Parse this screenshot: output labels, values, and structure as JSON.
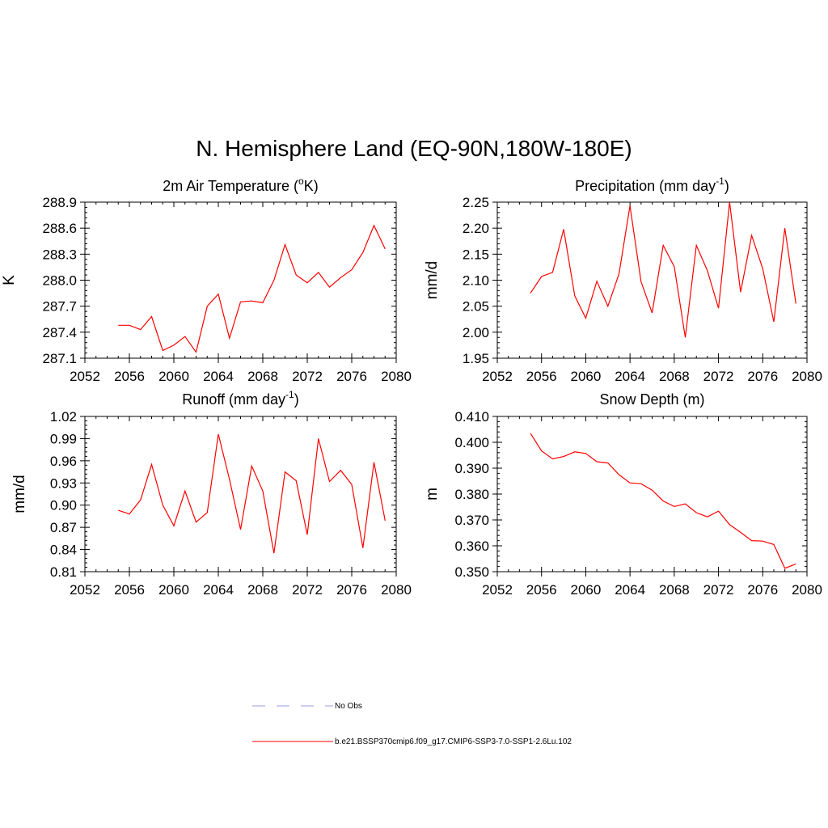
{
  "figure": {
    "title": "N. Hemisphere Land (EQ-90N,180W-180E)"
  },
  "legend": {
    "entries": [
      {
        "label": "No Obs",
        "style": "dashed",
        "color": "#9999dd"
      },
      {
        "label": "b.e21.BSSP370cmip6.f09_g17.CMIP6-SSP3-7.0-SSP1-2.6Lu.102",
        "style": "solid",
        "color": "#ff0000"
      }
    ]
  },
  "chart_data": [
    {
      "type": "line",
      "title": "2m Air Temperature (°K)",
      "title_parts": [
        "2m Air Temperature (",
        "o",
        "K)"
      ],
      "ylabel": "K",
      "xlim": [
        2052,
        2080
      ],
      "ylim": [
        287.1,
        288.9
      ],
      "xticks": [
        2052,
        2056,
        2060,
        2064,
        2068,
        2072,
        2076,
        2080
      ],
      "yticks": [
        287.1,
        287.4,
        287.7,
        288.0,
        288.3,
        288.6,
        288.9
      ],
      "ytick_labels": [
        "287.1",
        "287.4",
        "287.7",
        "288.0",
        "288.3",
        "288.6",
        "288.9"
      ],
      "color": "#ff0000",
      "x": [
        2055,
        2056,
        2057,
        2058,
        2059,
        2060,
        2061,
        2062,
        2063,
        2064,
        2065,
        2066,
        2067,
        2068,
        2069,
        2070,
        2071,
        2072,
        2073,
        2074,
        2075,
        2076,
        2077,
        2078,
        2079
      ],
      "y": [
        287.48,
        287.48,
        287.43,
        287.58,
        287.19,
        287.25,
        287.35,
        287.17,
        287.7,
        287.84,
        287.33,
        287.75,
        287.76,
        287.74,
        288.0,
        288.41,
        288.06,
        287.97,
        288.09,
        287.92,
        288.03,
        288.12,
        288.32,
        288.63,
        288.36
      ]
    },
    {
      "type": "line",
      "title": "Precipitation (mm day-1)",
      "title_parts": [
        "Precipitation (mm day",
        "-1",
        ")"
      ],
      "ylabel": "mm/d",
      "xlim": [
        2052,
        2080
      ],
      "ylim": [
        1.95,
        2.25
      ],
      "xticks": [
        2052,
        2056,
        2060,
        2064,
        2068,
        2072,
        2076,
        2080
      ],
      "yticks": [
        1.95,
        2.0,
        2.05,
        2.1,
        2.15,
        2.2,
        2.25
      ],
      "ytick_labels": [
        "1.95",
        "2.00",
        "2.05",
        "2.10",
        "2.15",
        "2.20",
        "2.25"
      ],
      "color": "#ff0000",
      "x": [
        2055,
        2056,
        2057,
        2058,
        2059,
        2060,
        2061,
        2062,
        2063,
        2064,
        2065,
        2066,
        2067,
        2068,
        2069,
        2070,
        2071,
        2072,
        2073,
        2074,
        2075,
        2076,
        2077,
        2078,
        2079
      ],
      "y": [
        2.075,
        2.107,
        2.115,
        2.198,
        2.07,
        2.027,
        2.098,
        2.05,
        2.112,
        2.243,
        2.097,
        2.037,
        2.167,
        2.126,
        1.99,
        2.167,
        2.118,
        2.046,
        2.25,
        2.077,
        2.186,
        2.122,
        2.02,
        2.2,
        2.055
      ]
    },
    {
      "type": "line",
      "title": "Runoff (mm day-1)",
      "title_parts": [
        "Runoff (mm day",
        "-1",
        ")"
      ],
      "ylabel": "mm/d",
      "xlim": [
        2052,
        2080
      ],
      "ylim": [
        0.81,
        1.02
      ],
      "xticks": [
        2052,
        2056,
        2060,
        2064,
        2068,
        2072,
        2076,
        2080
      ],
      "yticks": [
        0.81,
        0.84,
        0.87,
        0.9,
        0.93,
        0.96,
        0.99,
        1.02
      ],
      "ytick_labels": [
        "0.81",
        "0.84",
        "0.87",
        "0.90",
        "0.93",
        "0.96",
        "0.99",
        "1.02"
      ],
      "color": "#ff0000",
      "x": [
        2055,
        2056,
        2057,
        2058,
        2059,
        2060,
        2061,
        2062,
        2063,
        2064,
        2065,
        2066,
        2067,
        2068,
        2069,
        2070,
        2071,
        2072,
        2073,
        2074,
        2075,
        2076,
        2077,
        2078,
        2079
      ],
      "y": [
        0.893,
        0.888,
        0.907,
        0.955,
        0.9,
        0.872,
        0.919,
        0.877,
        0.89,
        0.996,
        0.935,
        0.867,
        0.953,
        0.919,
        0.835,
        0.945,
        0.933,
        0.86,
        0.99,
        0.932,
        0.947,
        0.928,
        0.842,
        0.958,
        0.879
      ]
    },
    {
      "type": "line",
      "title": "Snow Depth (m)",
      "title_parts": [
        "Snow Depth (m)",
        "",
        ""
      ],
      "ylabel": "m",
      "xlim": [
        2052,
        2080
      ],
      "ylim": [
        0.35,
        0.41
      ],
      "xticks": [
        2052,
        2056,
        2060,
        2064,
        2068,
        2072,
        2076,
        2080
      ],
      "yticks": [
        0.35,
        0.36,
        0.37,
        0.38,
        0.39,
        0.4,
        0.41
      ],
      "ytick_labels": [
        "0.350",
        "0.360",
        "0.370",
        "0.380",
        "0.390",
        "0.400",
        "0.410"
      ],
      "color": "#ff0000",
      "x": [
        2055,
        2056,
        2057,
        2058,
        2059,
        2060,
        2061,
        2062,
        2063,
        2064,
        2065,
        2066,
        2067,
        2068,
        2069,
        2070,
        2071,
        2072,
        2073,
        2074,
        2075,
        2076,
        2077,
        2078,
        2079
      ],
      "y": [
        0.4035,
        0.3967,
        0.3936,
        0.3945,
        0.3963,
        0.3957,
        0.3925,
        0.392,
        0.3875,
        0.3843,
        0.384,
        0.3815,
        0.3773,
        0.3752,
        0.3762,
        0.3728,
        0.3712,
        0.3734,
        0.3682,
        0.3652,
        0.362,
        0.3618,
        0.3605,
        0.3513,
        0.353
      ]
    }
  ]
}
